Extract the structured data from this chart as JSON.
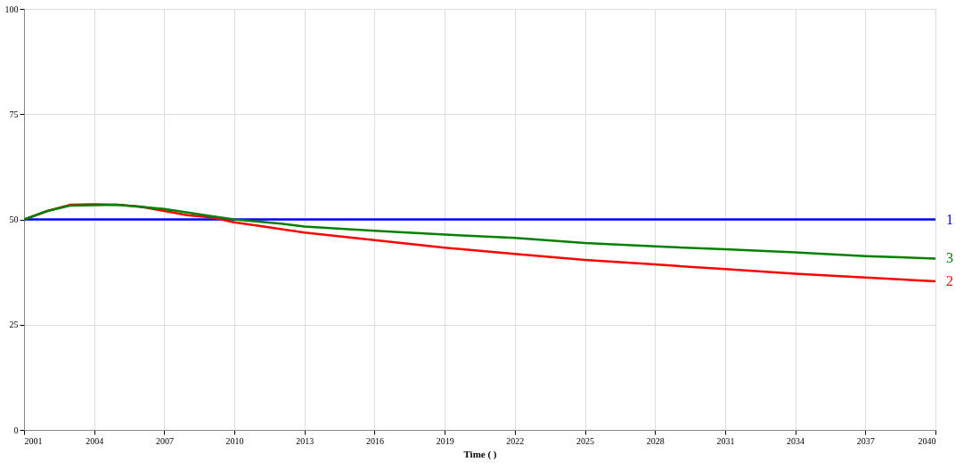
{
  "chart_data": {
    "type": "line",
    "xlabel": "Time (   )",
    "xlim": [
      2001,
      2040
    ],
    "xticks": [
      2001,
      2004,
      2007,
      2010,
      2013,
      2016,
      2019,
      2022,
      2025,
      2028,
      2031,
      2034,
      2037,
      2040
    ],
    "ylim": [
      0,
      100
    ],
    "yticks": [
      0,
      25,
      50,
      75,
      100
    ],
    "grid": true,
    "legend": false,
    "marker": "none",
    "line_style": "solid",
    "series": [
      {
        "name": "1",
        "color": "#0000ff",
        "x": [
          2001,
          2005,
          2009,
          2013,
          2017,
          2021,
          2025,
          2029,
          2033,
          2037,
          2040
        ],
        "values": [
          50,
          50,
          50,
          50,
          50,
          50,
          50,
          50,
          50,
          50,
          50
        ]
      },
      {
        "name": "2",
        "color": "#ff0000",
        "x": [
          2001,
          2002,
          2003,
          2004,
          2005,
          2006,
          2007,
          2008,
          2009,
          2010,
          2011,
          2013,
          2016,
          2019,
          2022,
          2025,
          2028,
          2031,
          2034,
          2037,
          2040
        ],
        "values": [
          50,
          52,
          53.5,
          53.6,
          53.5,
          53,
          52,
          51,
          50.5,
          49.3,
          48.5,
          46.9,
          45.1,
          43.3,
          41.8,
          40.4,
          39.3,
          38.2,
          37.1,
          36.2,
          35.3
        ]
      },
      {
        "name": "3",
        "color": "#008000",
        "x": [
          2001,
          2002,
          2003,
          2005,
          2007,
          2009,
          2010,
          2012,
          2013,
          2016,
          2019,
          2022,
          2025,
          2028,
          2031,
          2034,
          2037,
          2040
        ],
        "values": [
          50,
          52,
          53.3,
          53.5,
          52.5,
          50.8,
          50,
          49,
          48.3,
          47.3,
          46.4,
          45.6,
          44.4,
          43.6,
          42.9,
          42.2,
          41.3,
          40.7
        ]
      }
    ]
  }
}
